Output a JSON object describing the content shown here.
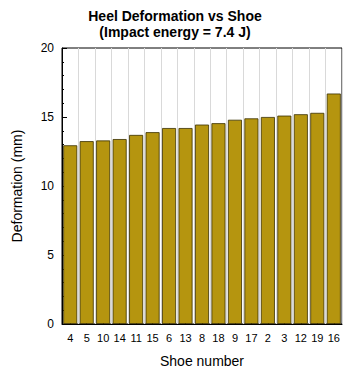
{
  "chart_data": {
    "type": "bar",
    "title": "Heel Deformation vs Shoe",
    "subtitle": "(Impact energy = 7.4 J)",
    "x_label": "Shoe number",
    "y_label": "Deformation (mm)",
    "categories": [
      "4",
      "5",
      "10",
      "14",
      "11",
      "15",
      "6",
      "13",
      "8",
      "18",
      "9",
      "17",
      "2",
      "3",
      "12",
      "19",
      "16"
    ],
    "values": [
      12.95,
      13.25,
      13.3,
      13.4,
      13.7,
      13.9,
      14.2,
      14.2,
      14.45,
      14.55,
      14.8,
      14.9,
      15.0,
      15.1,
      15.2,
      15.3,
      16.7
    ],
    "color": "#b5950f",
    "ylim": [
      0,
      20
    ],
    "yticks": [
      0,
      5,
      10,
      15,
      20
    ],
    "grid": true
  }
}
